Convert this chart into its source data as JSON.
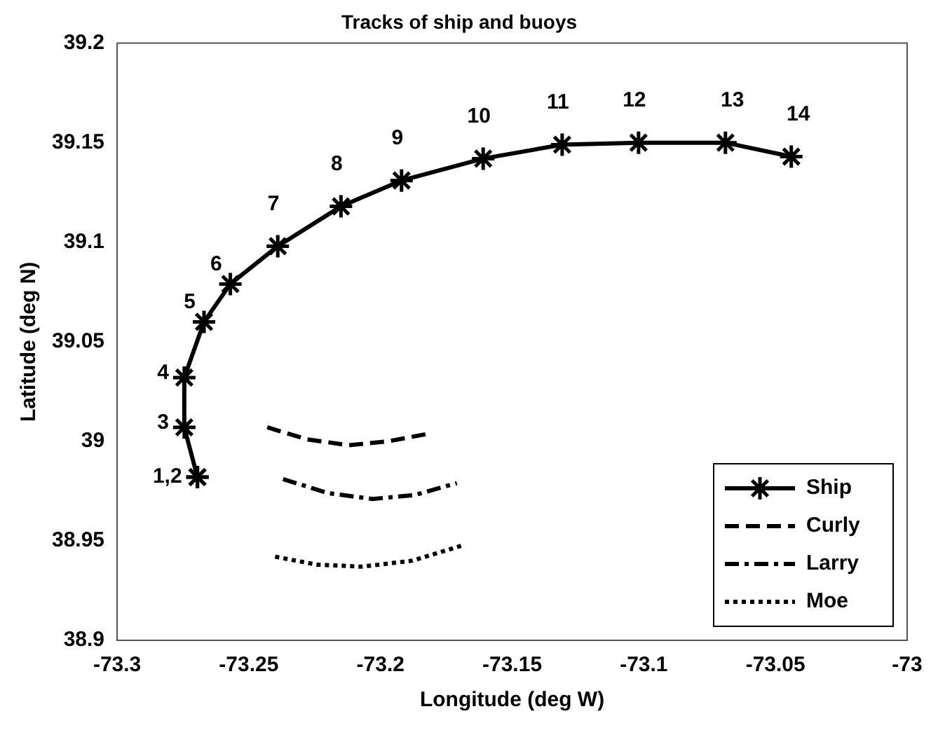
{
  "chart_data": {
    "type": "line",
    "title": "Tracks of ship and buoys",
    "xlabel": "Longitude (deg W)",
    "ylabel": "Latitude (deg N)",
    "xlim": [
      -73.3,
      -73
    ],
    "xticks": [
      -73.3,
      -73.25,
      -73.2,
      -73.15,
      -73.1,
      -73.05,
      -73
    ],
    "ylim": [
      38.9,
      39.2
    ],
    "yticks": [
      38.9,
      38.95,
      39,
      39.05,
      39.1,
      39.15,
      39.2
    ],
    "grid": false,
    "legend": "bottom right",
    "series": [
      {
        "name": "Ship",
        "color": "#000000",
        "marker": "cross",
        "line_style": "solid",
        "x": [
          -73.2695,
          -73.2695,
          -73.2745,
          -73.2745,
          -73.267,
          -73.257,
          -73.239,
          -73.215,
          -73.192,
          -73.161,
          -73.131,
          -73.102,
          -73.069,
          -73.044
        ],
        "values": [
          38.982,
          38.982,
          39.007,
          39.032,
          39.06,
          39.079,
          39.098,
          39.118,
          39.131,
          39.142,
          39.149,
          39.15,
          39.15,
          39.143
        ]
      },
      {
        "name": "Curly",
        "color": "#000000",
        "marker": "none",
        "line_style": "dashed",
        "x": [
          -73.243,
          -73.228,
          -73.212,
          -73.197,
          -73.181
        ],
        "values": [
          39.007,
          39.001,
          38.998,
          39.0,
          39.004
        ]
      },
      {
        "name": "Larry",
        "color": "#000000",
        "marker": "none",
        "line_style": "dashdot",
        "x": [
          -73.237,
          -73.22,
          -73.203,
          -73.187,
          -73.171
        ],
        "values": [
          38.981,
          38.974,
          38.971,
          38.973,
          38.979
        ]
      },
      {
        "name": "Moe",
        "color": "#000000",
        "marker": "none",
        "line_style": "dotted",
        "x": [
          -73.24,
          -73.224,
          -73.207,
          -73.188,
          -73.168
        ],
        "values": [
          38.942,
          38.938,
          38.937,
          38.94,
          38.948
        ]
      }
    ],
    "annotations": [
      {
        "text": "1,2",
        "x": -73.2695,
        "y": 38.982
      },
      {
        "text": "3",
        "x": -73.2745,
        "y": 39.007
      },
      {
        "text": "4",
        "x": -73.2745,
        "y": 39.032
      },
      {
        "text": "5",
        "x": -73.267,
        "y": 39.06
      },
      {
        "text": "6",
        "x": -73.257,
        "y": 39.079
      },
      {
        "text": "7",
        "x": -73.239,
        "y": 39.098
      },
      {
        "text": "8",
        "x": -73.215,
        "y": 39.118
      },
      {
        "text": "9",
        "x": -73.192,
        "y": 39.131
      },
      {
        "text": "10",
        "x": -73.161,
        "y": 39.142
      },
      {
        "text": "11",
        "x": -73.131,
        "y": 39.149
      },
      {
        "text": "12",
        "x": -73.102,
        "y": 39.15
      },
      {
        "text": "13",
        "x": -73.069,
        "y": 39.15
      },
      {
        "text": "14",
        "x": -73.044,
        "y": 39.143
      }
    ]
  }
}
